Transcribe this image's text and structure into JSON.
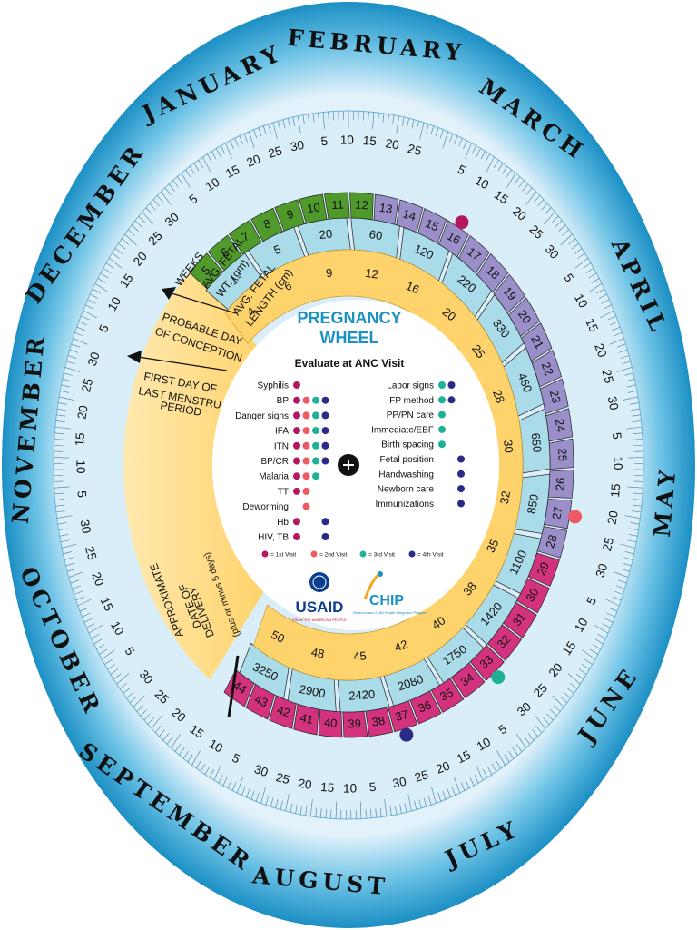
{
  "title_line1": "PREGNANCY",
  "title_line2": "WHEEL",
  "subtitle": "Evaluate at ANC Visit",
  "months": [
    {
      "name": "JANUARY",
      "ticks": [
        "5",
        "10",
        "15",
        "20",
        "25",
        "30"
      ]
    },
    {
      "name": "FEBRUARY",
      "ticks": [
        "5",
        "10",
        "15",
        "20",
        "25"
      ]
    },
    {
      "name": "MARCH",
      "ticks": [
        "5",
        "10",
        "15",
        "20",
        "25",
        "30"
      ]
    },
    {
      "name": "APRIL",
      "ticks": [
        "5",
        "10",
        "15",
        "20",
        "25",
        "30"
      ]
    },
    {
      "name": "MAY",
      "ticks": [
        "5",
        "10",
        "15",
        "20",
        "25",
        "30"
      ]
    },
    {
      "name": "JUNE",
      "ticks": [
        "5",
        "10",
        "15",
        "20",
        "25",
        "30"
      ]
    },
    {
      "name": "JULY",
      "ticks": [
        "5",
        "10",
        "15",
        "20",
        "25",
        "30"
      ]
    },
    {
      "name": "AUGUST",
      "ticks": [
        "5",
        "10",
        "15",
        "20",
        "25",
        "30"
      ]
    },
    {
      "name": "SEPTEMBER",
      "ticks": [
        "5",
        "10",
        "15",
        "20",
        "25",
        "30"
      ]
    },
    {
      "name": "OCTOBER",
      "ticks": [
        "5",
        "10",
        "15",
        "20",
        "25",
        "30"
      ]
    },
    {
      "name": "NOVEMBER",
      "ticks": [
        "5",
        "10",
        "15",
        "20",
        "25",
        "30"
      ]
    },
    {
      "name": "DECEMBER",
      "ticks": [
        "5",
        "10",
        "15",
        "20",
        "25",
        "30"
      ]
    }
  ],
  "labels": {
    "weeks": "WEEKS",
    "avg_wt_1": "AVG. FETAL",
    "avg_wt_2": "WT. (gm)",
    "avg_len_1": "AVG. FETAL",
    "avg_len_2": "LENGTH (cm)",
    "conception_1": "PROBABLE DAY",
    "conception_2": "OF CONCEPTION",
    "lmp_1": "FIRST DAY OF",
    "lmp_2": "LAST MENSTRUAL",
    "lmp_3": "PERIOD",
    "delivery_1": "APPROXIMATE",
    "delivery_2": "DATE OF",
    "delivery_3": "DELIVERY",
    "delivery_4": "(plus or minus 5 days)"
  },
  "weeks": [
    "5",
    "6",
    "7",
    "8",
    "9",
    "10",
    "11",
    "12",
    "13",
    "14",
    "15",
    "16",
    "17",
    "18",
    "19",
    "20",
    "21",
    "22",
    "23",
    "24",
    "25",
    "26",
    "27",
    "28",
    "29",
    "30",
    "31",
    "32",
    "33",
    "34",
    "35",
    "36",
    "37",
    "38",
    "39",
    "40",
    "41",
    "42",
    "43",
    "44"
  ],
  "weights": [
    "1",
    "5",
    "20",
    "60",
    "120",
    "220",
    "330",
    "460",
    "650",
    "850",
    "1100",
    "1420",
    "1750",
    "2080",
    "2420",
    "2900",
    "3250"
  ],
  "lengths": [
    "4",
    "6",
    "9",
    "12",
    "16",
    "20",
    "25",
    "28",
    "30",
    "32",
    "35",
    "38",
    "40",
    "42",
    "45",
    "48",
    "50"
  ],
  "evaluations_left": [
    {
      "name": "Syphilis",
      "dots": [
        1
      ]
    },
    {
      "name": "BP",
      "dots": [
        1,
        2,
        3,
        4
      ]
    },
    {
      "name": "Danger signs",
      "dots": [
        1,
        2,
        3,
        4
      ]
    },
    {
      "name": "IFA",
      "dots": [
        1,
        2,
        3,
        4
      ]
    },
    {
      "name": "ITN",
      "dots": [
        1,
        2,
        3,
        4
      ]
    },
    {
      "name": "BP/CR",
      "dots": [
        1,
        2,
        3,
        4
      ]
    },
    {
      "name": "Malaria",
      "dots": [
        1,
        2,
        3
      ]
    },
    {
      "name": "TT",
      "dots": [
        1,
        2
      ]
    },
    {
      "name": "Deworming",
      "dots": [
        2
      ]
    },
    {
      "name": "Hb",
      "dots": [
        1,
        4
      ]
    },
    {
      "name": "HIV, TB",
      "dots": [
        1,
        4
      ]
    }
  ],
  "evaluations_right": [
    {
      "name": "Labor signs",
      "dots": [
        3,
        4
      ]
    },
    {
      "name": "FP method",
      "dots": [
        3,
        4
      ]
    },
    {
      "name": "PP/PN care",
      "dots": [
        3
      ]
    },
    {
      "name": "Immediate/EBF",
      "dots": [
        3
      ]
    },
    {
      "name": "Birth spacing",
      "dots": [
        3
      ]
    },
    {
      "name": "Fetal position",
      "dots": [
        4
      ]
    },
    {
      "name": "Handwashing",
      "dots": [
        4
      ]
    },
    {
      "name": "Newborn care",
      "dots": [
        4
      ]
    },
    {
      "name": "Immunizations",
      "dots": [
        4
      ]
    }
  ],
  "legend": [
    "= 1st Visit",
    "= 2nd Visit",
    "= 3rd Visit",
    "= 4th Visit"
  ],
  "visit_colors": [
    "#b5175f",
    "#ee5a63",
    "#1fb09a",
    "#2b2a87"
  ],
  "colors": {
    "outer_blue": "#2ba6d6",
    "date_ring": "#d9eef8",
    "green": "#4f9a2a",
    "purple": "#9a8fc9",
    "magenta": "#d3337e",
    "weight_ring": "#a9dbe9",
    "length_ring": "#ffd36b",
    "title_blue": "#1a92c4"
  },
  "logos": {
    "usaid": "USAID",
    "usaid_sub": "FROM THE AMERICAN PEOPLE",
    "chip": "CHIP",
    "chip_sub": "Maternal and Child Health Integrated Program"
  },
  "center_icon": "plus-icon"
}
